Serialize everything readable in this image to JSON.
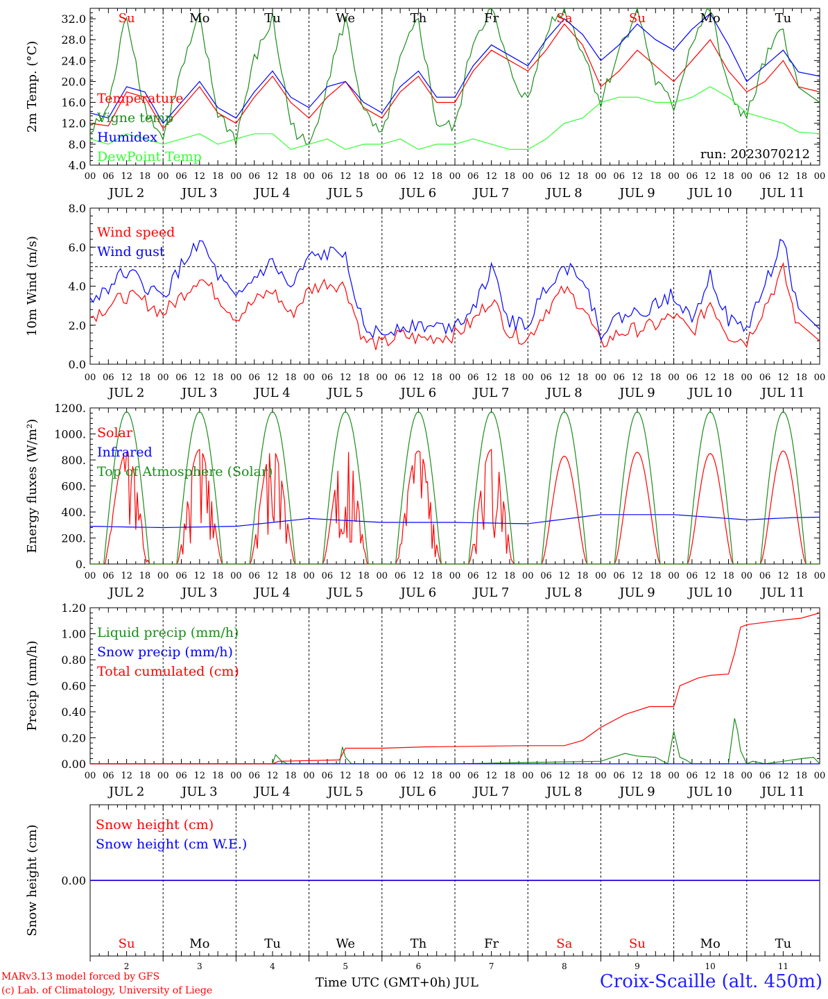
{
  "chart_data": [
    {
      "type": "line",
      "ylabel": "2m Temp. (°C)",
      "ylim": [
        4.0,
        34.0
      ],
      "yticks": [
        "4.0",
        "8.0",
        "12.0",
        "16.0",
        "20.0",
        "24.0",
        "28.0",
        "32.0"
      ],
      "annotation": "run: 2023070212",
      "day_labels": [
        "Su",
        "Mo",
        "Tu",
        "We",
        "Th",
        "Fr",
        "Sa",
        "Su",
        "Mo",
        "Tu"
      ],
      "series": [
        {
          "name": "Temperature",
          "color": "#ff0000",
          "x_hours": [
            0,
            6,
            12,
            18,
            24,
            30,
            36,
            42,
            48,
            54,
            60,
            66,
            72,
            78,
            84,
            90,
            96,
            102,
            108,
            114,
            120,
            126,
            132,
            138,
            144,
            150,
            156,
            162,
            168,
            174,
            180,
            186,
            192,
            198,
            204,
            210,
            216,
            222,
            228,
            234
          ],
          "values": [
            12,
            11.5,
            18,
            17,
            11,
            15,
            19,
            14,
            12,
            17,
            21,
            16,
            13,
            17,
            20,
            15,
            13,
            18,
            21,
            16,
            16,
            22,
            26,
            24,
            22,
            26,
            31,
            27,
            19,
            22,
            26,
            23,
            20,
            24,
            28,
            22,
            18,
            20,
            24,
            18
          ]
        },
        {
          "name": "Vigne temp",
          "color": "#1a8c1a",
          "x_hours": [
            0,
            6,
            12,
            18,
            24,
            30,
            36,
            42,
            48,
            54,
            60,
            66,
            72,
            78,
            84,
            90,
            96,
            102,
            108,
            114,
            120,
            126,
            132,
            138,
            144,
            150,
            156,
            162,
            168,
            174,
            180,
            186,
            192,
            198,
            204,
            210,
            216,
            222,
            228,
            234
          ],
          "values": [
            10,
            15,
            33,
            15,
            9,
            22,
            32,
            14,
            9,
            24,
            32,
            12,
            7,
            20,
            32,
            14,
            9,
            24,
            32,
            12,
            11,
            28,
            34,
            22,
            16,
            30,
            34,
            26,
            16,
            26,
            34,
            20,
            15,
            28,
            34,
            18,
            13,
            24,
            30,
            16
          ]
        },
        {
          "name": "Humidex",
          "color": "#0000ff",
          "x_hours": [
            0,
            6,
            12,
            18,
            24,
            30,
            36,
            42,
            48,
            54,
            60,
            66,
            72,
            78,
            84,
            90,
            96,
            102,
            108,
            114,
            120,
            126,
            132,
            138,
            144,
            150,
            156,
            162,
            168,
            174,
            180,
            186,
            192,
            198,
            204,
            210,
            216,
            222,
            228,
            234
          ],
          "values": [
            14,
            13,
            19,
            18,
            12,
            16,
            20,
            15,
            13,
            18,
            22,
            17,
            15,
            19,
            20,
            16,
            14,
            19,
            22,
            17,
            17,
            23,
            27,
            25,
            23,
            28,
            32,
            29,
            24,
            27,
            31,
            28,
            26,
            30,
            33,
            27,
            20,
            23,
            26,
            21
          ]
        },
        {
          "name": "DewPoint Temp",
          "color": "#33ff33",
          "x_hours": [
            0,
            6,
            12,
            18,
            24,
            30,
            36,
            42,
            48,
            54,
            60,
            66,
            72,
            78,
            84,
            90,
            96,
            102,
            108,
            114,
            120,
            126,
            132,
            138,
            144,
            150,
            156,
            162,
            168,
            174,
            180,
            186,
            192,
            198,
            204,
            210,
            216,
            222,
            228,
            234
          ],
          "values": [
            9,
            8,
            10,
            9,
            8,
            9,
            10,
            8,
            9,
            10,
            10,
            7,
            8,
            9,
            7,
            8,
            8,
            9,
            7,
            8,
            8,
            9,
            8,
            7,
            7,
            9,
            12,
            13,
            16,
            17,
            17,
            16,
            16,
            17,
            19,
            17,
            14,
            13,
            12,
            10
          ]
        }
      ]
    },
    {
      "type": "line",
      "ylabel": "10m Wind (m/s)",
      "ylim": [
        0.0,
        8.0
      ],
      "yticks": [
        "0.0",
        "2.0",
        "4.0",
        "6.0",
        "8.0"
      ],
      "reference_line": 5.0,
      "series": [
        {
          "name": "Wind speed",
          "color": "#ff0000",
          "x_hours": [
            0,
            6,
            12,
            18,
            24,
            30,
            36,
            42,
            48,
            54,
            60,
            66,
            72,
            78,
            84,
            90,
            96,
            102,
            108,
            114,
            120,
            126,
            132,
            138,
            144,
            150,
            156,
            162,
            168,
            174,
            180,
            186,
            192,
            198,
            204,
            210,
            216,
            222,
            228,
            234
          ],
          "values": [
            2.4,
            3.0,
            3.5,
            3.2,
            2.6,
            3.5,
            4.5,
            3.5,
            2.4,
            3.2,
            3.8,
            2.5,
            3.8,
            4.2,
            4.0,
            1.2,
            1.0,
            1.5,
            1.3,
            1.4,
            1.5,
            2.2,
            3.4,
            1.6,
            1.3,
            2.8,
            3.8,
            3.0,
            1.0,
            1.6,
            1.8,
            2.0,
            2.5,
            1.6,
            3.2,
            1.5,
            1.2,
            3.0,
            4.8,
            1.2
          ]
        },
        {
          "name": "Wind gust",
          "color": "#0000ff",
          "x_hours": [
            0,
            6,
            12,
            18,
            24,
            30,
            36,
            42,
            48,
            54,
            60,
            66,
            72,
            78,
            84,
            90,
            96,
            102,
            108,
            114,
            120,
            126,
            132,
            138,
            144,
            150,
            156,
            162,
            168,
            174,
            180,
            186,
            192,
            198,
            204,
            210,
            216,
            222,
            228,
            234
          ],
          "values": [
            3.2,
            4.0,
            4.8,
            4.0,
            3.4,
            5.0,
            6.4,
            4.5,
            3.2,
            4.4,
            5.2,
            3.8,
            5.4,
            5.6,
            5.8,
            1.8,
            1.5,
            2.0,
            2.0,
            1.9,
            2.0,
            3.0,
            4.8,
            2.2,
            2.0,
            4.0,
            5.0,
            4.6,
            1.6,
            2.4,
            2.6,
            3.0,
            3.6,
            2.4,
            4.6,
            2.2,
            1.8,
            4.0,
            6.5,
            1.8
          ]
        }
      ]
    },
    {
      "type": "line",
      "ylabel": "Energy fluxes (W/m²)",
      "ylim": [
        0,
        1200
      ],
      "yticks": [
        "0.",
        "200.",
        "400.",
        "600.",
        "800.",
        "1000.",
        "1200."
      ],
      "series": [
        {
          "name": "Solar",
          "color": "#ff0000",
          "peaks": [
            860,
            880,
            880,
            890,
            870,
            880,
            830,
            860,
            850,
            870
          ]
        },
        {
          "name": "Infrared",
          "color": "#0000ff",
          "x_hours": [
            0,
            24,
            48,
            72,
            96,
            120,
            144,
            168,
            192,
            216,
            234
          ],
          "values": [
            290,
            280,
            290,
            350,
            320,
            320,
            310,
            380,
            380,
            340,
            360
          ]
        },
        {
          "name": "Top of Atmosphere (Solar)",
          "color": "#1a8c1a",
          "peaks": [
            1170,
            1170,
            1170,
            1170,
            1170,
            1170,
            1170,
            1170,
            1170,
            1170
          ]
        }
      ]
    },
    {
      "type": "line",
      "ylabel": "Precip (mm/h)",
      "ylim": [
        0.0,
        1.2
      ],
      "yticks": [
        "0.00",
        "0.20",
        "0.40",
        "0.60",
        "0.80",
        "1.00",
        "1.20"
      ],
      "series": [
        {
          "name": "Liquid precip (mm/h)",
          "color": "#1a8c1a",
          "x_hours": [
            0,
            60,
            61,
            63,
            65,
            82,
            83,
            84,
            86,
            120,
            168,
            172,
            176,
            180,
            186,
            190,
            192,
            194,
            196,
            198,
            202,
            210,
            212,
            213,
            214,
            216,
            218,
            222,
            228,
            234,
            238,
            240
          ],
          "values": [
            0,
            0,
            0.07,
            0.02,
            0,
            0,
            0.13,
            0.05,
            0,
            0,
            0.02,
            0.05,
            0.08,
            0.06,
            0.05,
            0,
            0.25,
            0.05,
            0.03,
            0,
            0,
            0,
            0.35,
            0.25,
            0.1,
            0,
            0.02,
            0,
            0.02,
            0.04,
            0.05,
            0
          ]
        },
        {
          "name": "Snow precip (mm/h)",
          "color": "#0000ff",
          "x_hours": [
            0,
            240
          ],
          "values": [
            0,
            0
          ]
        },
        {
          "name": "Total cumulated (cm)",
          "color": "#ff0000",
          "x_hours": [
            0,
            60,
            62,
            82,
            84,
            96,
            110,
            144,
            156,
            162,
            168,
            176,
            184,
            192,
            194,
            196,
            200,
            204,
            210,
            212,
            214,
            216,
            226,
            234,
            240
          ],
          "values": [
            0,
            0,
            0.02,
            0.03,
            0.12,
            0.12,
            0.13,
            0.14,
            0.14,
            0.18,
            0.28,
            0.38,
            0.44,
            0.44,
            0.6,
            0.62,
            0.66,
            0.68,
            0.69,
            0.85,
            1.05,
            1.07,
            1.1,
            1.12,
            1.16
          ]
        }
      ]
    },
    {
      "type": "line",
      "ylabel": "Snow height (cm)",
      "ylim": [
        -1.0,
        1.0
      ],
      "yticks": [
        "0.00"
      ],
      "series": [
        {
          "name": "Snow height (cm)",
          "color": "#ff0000",
          "x_hours": [
            0,
            240
          ],
          "values": [
            0,
            0
          ]
        },
        {
          "name": "Snow height (cm W.E.)",
          "color": "#0000ff",
          "x_hours": [
            0,
            240
          ],
          "values": [
            0,
            0
          ]
        }
      ],
      "day_labels": [
        "Su",
        "Mo",
        "Tu",
        "We",
        "Th",
        "Fr",
        "Sa",
        "Su",
        "Mo",
        "Tu"
      ],
      "day_numbers": [
        "2",
        "3",
        "4",
        "5",
        "6",
        "7",
        "8",
        "9",
        "10",
        "11"
      ]
    }
  ],
  "x_axis": {
    "hour_ticks": [
      "00",
      "06",
      "12",
      "18"
    ],
    "end_tick": "00",
    "dates": [
      "JUL  2",
      "JUL  3",
      "JUL  4",
      "JUL  5",
      "JUL  6",
      "JUL  7",
      "JUL  8",
      "JUL  9",
      "JUL 10",
      "JUL 11"
    ],
    "weekend_color": "#ff0000",
    "weekend_days": [
      "Su",
      "Sa"
    ],
    "xlabel": "Time UTC (GMT+0h) JUL"
  },
  "footer": {
    "credit_line1": "MARv3.13 model forced by GFS",
    "credit_line2": "(c) Lab. of Climatology, University of Liege",
    "station": "Croix-Scaille (alt. 450m)"
  }
}
